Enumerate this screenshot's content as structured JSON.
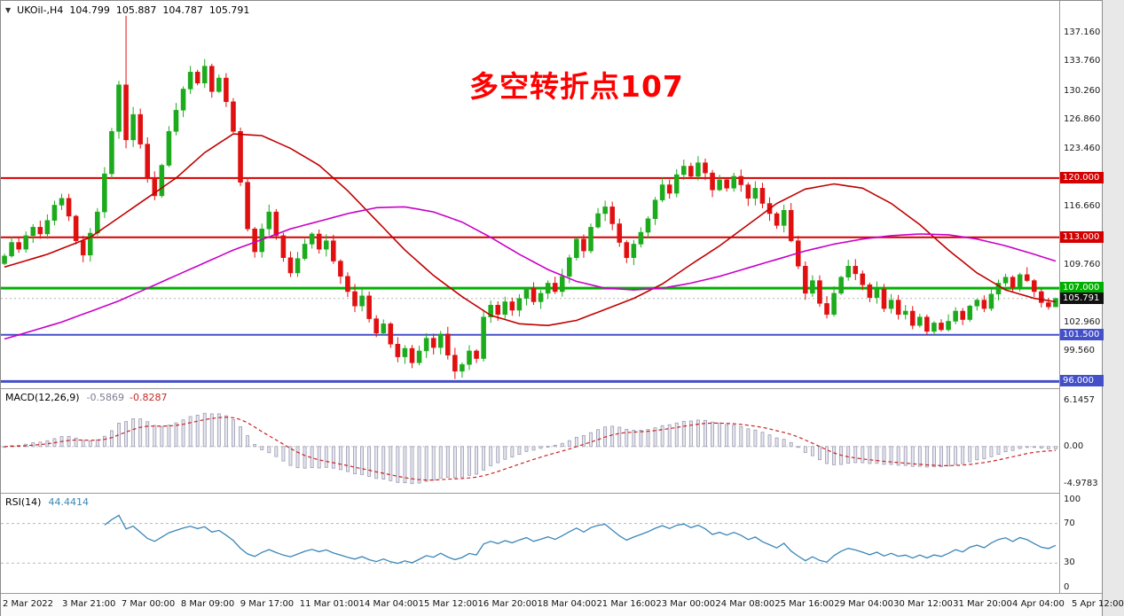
{
  "window": {
    "collapse_icon": "▼",
    "title_symbol": "UKOil-,H4",
    "open": "104.799",
    "high": "105.887",
    "low": "104.787",
    "close": "105.791"
  },
  "annotation": {
    "text": "多空转折点107",
    "color": "#ff0000"
  },
  "colors": {
    "bull": "#1cab1c",
    "bear": "#e01010",
    "ma_red": "#c00000",
    "ma_magenta": "#c800c8",
    "macd_signal": "#cc2222",
    "hist_fill": "#e6e6f0",
    "hist_stroke": "#9a9ab0",
    "rsi": "#3a86b8",
    "current_dotted": "#b5b5b5",
    "badge_current": "#111111"
  },
  "chart_data": {
    "type": "candlestick",
    "symbol": "UKOil-",
    "timeframe": "H4",
    "title": "UKOil-,H4 104.799 105.887 104.787 105.791",
    "ylim": [
      95.2,
      140.9
    ],
    "first_open": 109.9,
    "closes": [
      110.8,
      112.4,
      111.6,
      113.2,
      114.2,
      113.4,
      115.0,
      116.8,
      117.6,
      115.5,
      112.6,
      110.9,
      113.5,
      116.0,
      120.5,
      125.5,
      131.0,
      124.5,
      127.5,
      124.0,
      120.0,
      117.9,
      121.5,
      125.5,
      128.0,
      130.5,
      132.5,
      131.2,
      133.2,
      130.2,
      131.8,
      129.0,
      125.5,
      119.5,
      114.0,
      111.3,
      114.0,
      116.0,
      113.2,
      110.6,
      108.8,
      110.5,
      112.2,
      113.4,
      111.6,
      112.6,
      110.2,
      108.4,
      106.6,
      104.9,
      106.1,
      103.4,
      101.7,
      102.8,
      100.4,
      98.9,
      99.9,
      98.2,
      99.6,
      101.1,
      100.0,
      101.6,
      99.1,
      97.2,
      98.0,
      99.6,
      98.7,
      103.6,
      105.0,
      103.9,
      105.4,
      104.4,
      105.8,
      107.0,
      105.4,
      106.4,
      107.6,
      106.6,
      108.4,
      110.6,
      112.8,
      111.4,
      114.2,
      115.8,
      116.6,
      114.6,
      112.4,
      110.6,
      112.2,
      113.6,
      115.2,
      117.4,
      119.2,
      118.2,
      120.4,
      121.4,
      120.2,
      121.8,
      120.6,
      118.6,
      119.8,
      118.8,
      120.2,
      119.2,
      117.6,
      118.8,
      117.0,
      115.8,
      114.4,
      116.2,
      112.6,
      109.6,
      106.4,
      107.9,
      105.2,
      103.9,
      106.4,
      108.3,
      109.6,
      108.7,
      107.4,
      105.9,
      106.9,
      104.6,
      105.6,
      103.9,
      104.3,
      102.6,
      103.6,
      101.9,
      102.9,
      102.1,
      103.1,
      104.3,
      103.3,
      104.9,
      105.6,
      104.6,
      106.3,
      107.6,
      108.3,
      107.1,
      108.6,
      107.9,
      106.6,
      105.3,
      104.799,
      105.791
    ],
    "overrides": [
      {
        "i": 17,
        "h": 139.13,
        "l": 123.5
      },
      {
        "i": 63,
        "l": 96.28
      },
      {
        "i": 147,
        "h": 105.887,
        "l": 104.787
      }
    ],
    "levels": [
      {
        "price": 120.0,
        "label": "120.000",
        "color": "#d40000",
        "width": 2
      },
      {
        "price": 113.0,
        "label": "113.000",
        "color": "#d40000",
        "width": 2
      },
      {
        "price": 107.0,
        "label": "107.000",
        "color": "#00b000",
        "width": 3
      },
      {
        "price": 101.5,
        "label": "101.500",
        "color": "#4450c8",
        "width": 2
      },
      {
        "price": 96.0,
        "label": "96.000",
        "color": "#4450c8",
        "width": 3
      }
    ],
    "current_price": {
      "value": 105.791,
      "label": "105.791"
    },
    "y_ticks": [
      {
        "price": 137.16,
        "label": "137.160"
      },
      {
        "price": 133.76,
        "label": "133.760"
      },
      {
        "price": 130.26,
        "label": "130.260"
      },
      {
        "price": 126.86,
        "label": "126.860"
      },
      {
        "price": 123.46,
        "label": "123.460"
      },
      {
        "price": 116.66,
        "label": "116.660"
      },
      {
        "price": 109.76,
        "label": "109.760"
      },
      {
        "price": 102.96,
        "label": "102.960"
      },
      {
        "price": 99.56,
        "label": "99.560"
      }
    ],
    "x_labels": [
      "2 Mar 2022",
      "3 Mar 21:00",
      "7 Mar 00:00",
      "8 Mar 09:00",
      "9 Mar 17:00",
      "11 Mar 01:00",
      "14 Mar 04:00",
      "15 Mar 12:00",
      "16 Mar 20:00",
      "18 Mar 04:00",
      "21 Mar 16:00",
      "23 Mar 00:00",
      "24 Mar 08:00",
      "25 Mar 16:00",
      "29 Mar 04:00",
      "30 Mar 12:00",
      "31 Mar 20:00",
      "4 Apr 04:00",
      "5 Apr 12:00"
    ],
    "ma_red": [
      [
        0,
        109.5
      ],
      [
        6,
        111.0
      ],
      [
        12,
        113.0
      ],
      [
        18,
        116.5
      ],
      [
        24,
        120.0
      ],
      [
        28,
        123.0
      ],
      [
        32,
        125.2
      ],
      [
        36,
        125.0
      ],
      [
        40,
        123.5
      ],
      [
        44,
        121.5
      ],
      [
        48,
        118.5
      ],
      [
        52,
        115.0
      ],
      [
        56,
        111.5
      ],
      [
        60,
        108.5
      ],
      [
        64,
        106.0
      ],
      [
        68,
        103.8
      ],
      [
        72,
        102.8
      ],
      [
        76,
        102.6
      ],
      [
        80,
        103.2
      ],
      [
        84,
        104.5
      ],
      [
        88,
        105.8
      ],
      [
        92,
        107.5
      ],
      [
        96,
        109.8
      ],
      [
        100,
        112.0
      ],
      [
        104,
        114.5
      ],
      [
        108,
        117.0
      ],
      [
        112,
        118.7
      ],
      [
        116,
        119.3
      ],
      [
        120,
        118.8
      ],
      [
        124,
        117.0
      ],
      [
        128,
        114.5
      ],
      [
        132,
        111.5
      ],
      [
        136,
        108.8
      ],
      [
        140,
        106.8
      ],
      [
        144,
        105.8
      ],
      [
        147,
        105.4
      ]
    ],
    "ma_magenta": [
      [
        0,
        101.0
      ],
      [
        8,
        103.0
      ],
      [
        16,
        105.5
      ],
      [
        24,
        108.5
      ],
      [
        32,
        111.5
      ],
      [
        40,
        114.0
      ],
      [
        48,
        115.8
      ],
      [
        52,
        116.5
      ],
      [
        56,
        116.6
      ],
      [
        60,
        116.0
      ],
      [
        64,
        114.8
      ],
      [
        68,
        113.0
      ],
      [
        72,
        111.0
      ],
      [
        76,
        109.2
      ],
      [
        80,
        107.8
      ],
      [
        84,
        107.0
      ],
      [
        88,
        106.8
      ],
      [
        92,
        107.0
      ],
      [
        96,
        107.6
      ],
      [
        100,
        108.4
      ],
      [
        104,
        109.4
      ],
      [
        108,
        110.4
      ],
      [
        112,
        111.4
      ],
      [
        116,
        112.2
      ],
      [
        120,
        112.8
      ],
      [
        124,
        113.2
      ],
      [
        128,
        113.4
      ],
      [
        132,
        113.3
      ],
      [
        136,
        112.8
      ],
      [
        140,
        112.0
      ],
      [
        144,
        111.0
      ],
      [
        147,
        110.2
      ]
    ],
    "macd": {
      "label": "MACD(12,26,9)",
      "value_macd": "-0.5869",
      "value_signal": "-0.8287",
      "params": [
        12,
        26,
        9
      ],
      "ylim": [
        -6.2,
        7.7
      ],
      "ticks": [
        {
          "v": 6.1457,
          "label": "6.1457"
        },
        {
          "v": 0,
          "label": "0.00"
        },
        {
          "v": -4.9783,
          "label": "-4.9783"
        }
      ]
    },
    "rsi": {
      "label": "RSI(14)",
      "value": "44.4414",
      "period": 14,
      "ylim": [
        0,
        100
      ],
      "levels": [
        70,
        30
      ],
      "ticks": [
        {
          "v": 100,
          "label": "100"
        },
        {
          "v": 70,
          "label": "70"
        },
        {
          "v": 30,
          "label": "30"
        },
        {
          "v": 0,
          "label": "0"
        }
      ]
    }
  }
}
